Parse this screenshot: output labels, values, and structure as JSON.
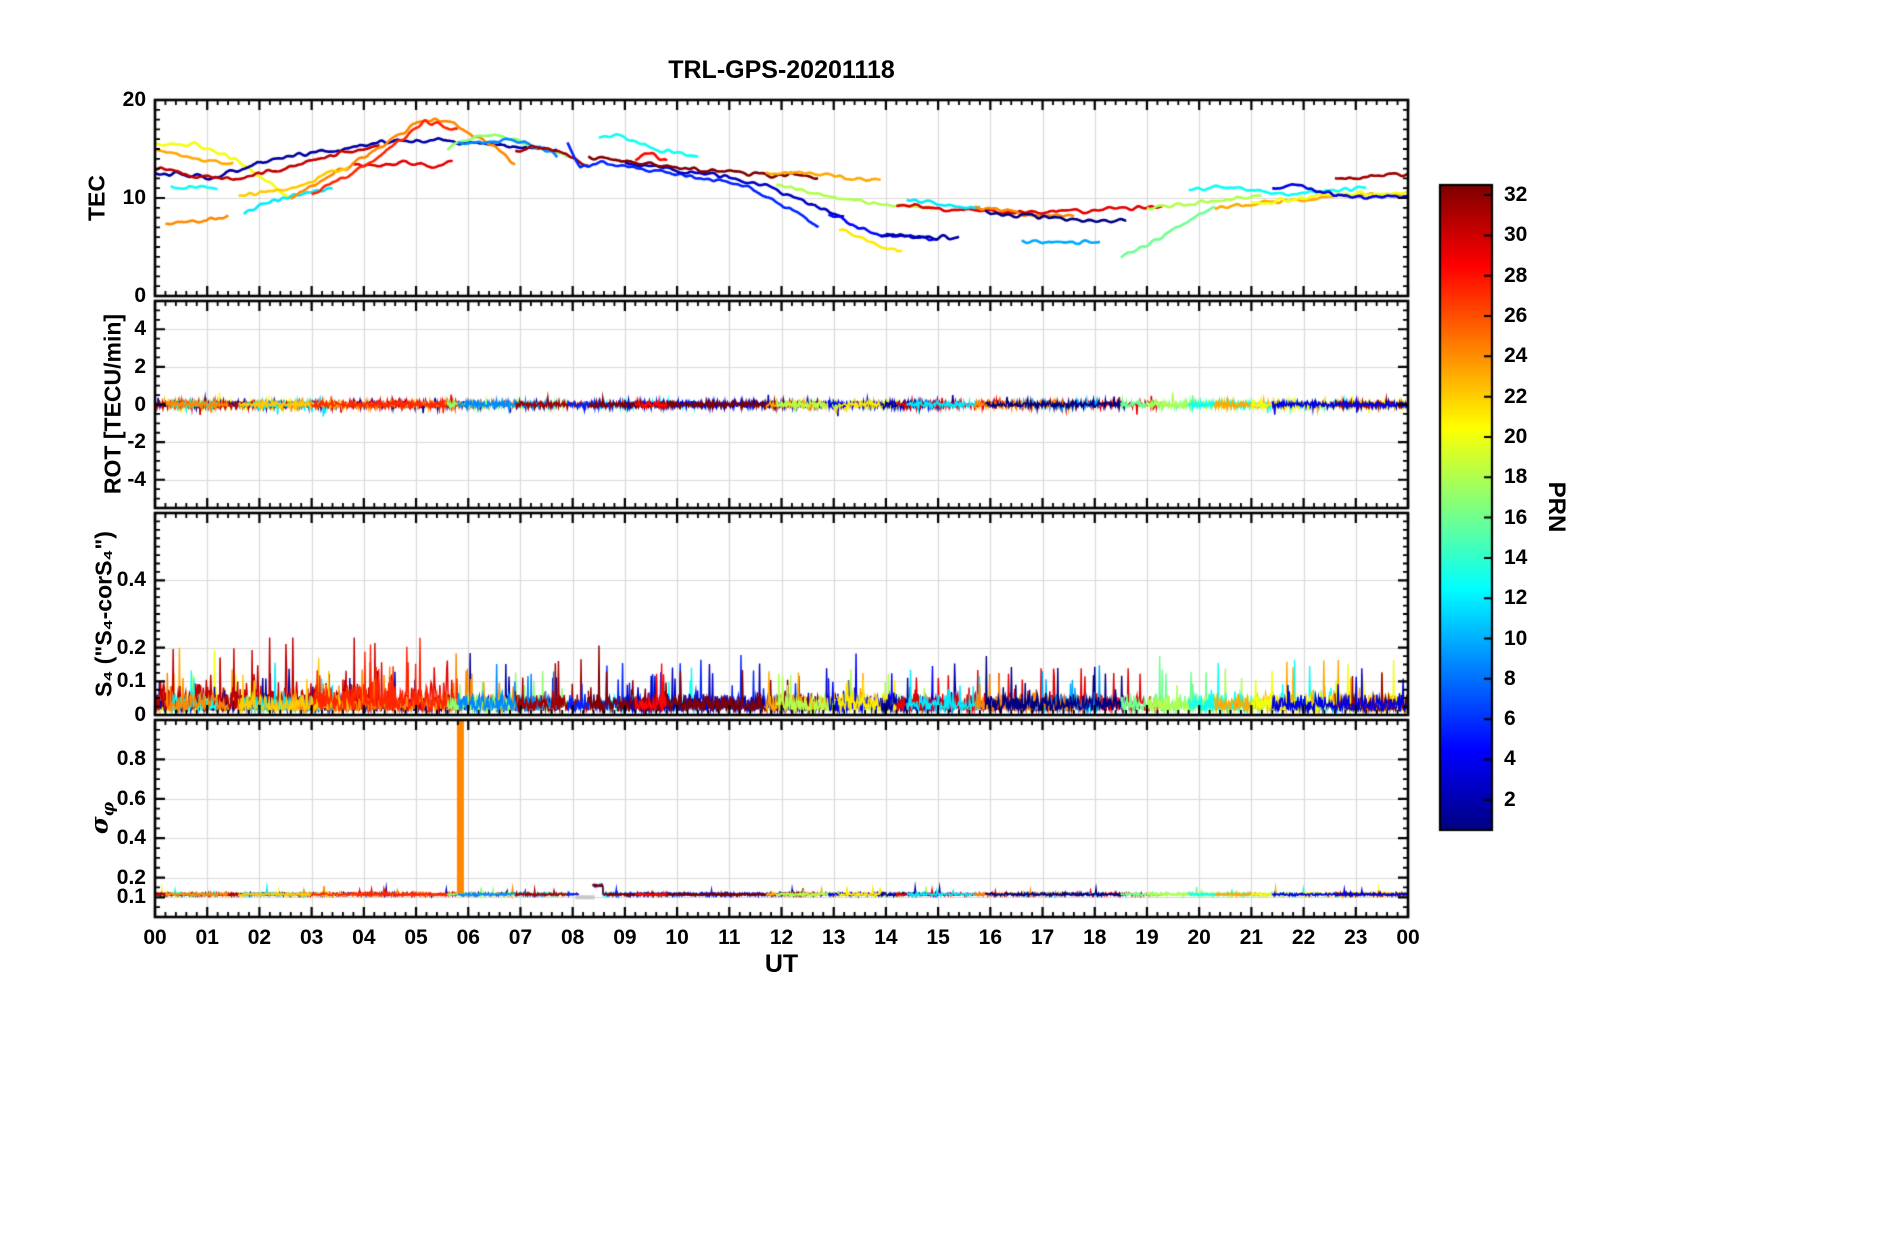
{
  "chart_data": {
    "type": "line",
    "title": "TRL-GPS-20201118",
    "xlabel": "UT",
    "x_range": [
      0,
      24
    ],
    "x_tick_labels": [
      "00",
      "01",
      "02",
      "03",
      "04",
      "05",
      "06",
      "07",
      "08",
      "09",
      "10",
      "11",
      "12",
      "13",
      "14",
      "15",
      "16",
      "17",
      "18",
      "19",
      "20",
      "21",
      "22",
      "23",
      "00"
    ],
    "x_minor": 0.2,
    "grid": true,
    "colorbar": {
      "label": "PRN",
      "range": [
        1,
        32
      ],
      "ticks": [
        2,
        4,
        6,
        8,
        10,
        12,
        14,
        16,
        18,
        20,
        22,
        24,
        26,
        28,
        30,
        32
      ],
      "colormap": "jet"
    },
    "panels": [
      {
        "name": "tec",
        "ylabel": "TEC",
        "ylim": [
          0,
          20
        ],
        "yticks": [
          0,
          10,
          20
        ],
        "yminor": 1
      },
      {
        "name": "rot",
        "ylabel": "ROT [TECU/min]",
        "ylim": [
          -5.5,
          5.5
        ],
        "yticks": [
          -4,
          -2,
          0,
          2,
          4
        ],
        "yminor": 0.5
      },
      {
        "name": "s4",
        "ylabel": "S₄ (\"S₄-corS₄\")",
        "ylim": [
          0,
          0.6
        ],
        "yticks": [
          0,
          0.1,
          0.2,
          0.4
        ],
        "yminor": 0.025
      },
      {
        "name": "sigma_phi",
        "ylabel_main": "σ",
        "ylabel_sub": "φ",
        "ylim": [
          0,
          1
        ],
        "yticks": [
          0.1,
          0.2,
          0.4,
          0.6,
          0.8
        ],
        "yminor": 0.05
      }
    ],
    "arcs": [
      {
        "prn": 23,
        "pts": [
          [
            0,
            14.9
          ],
          [
            0.7,
            14.1
          ],
          [
            1.3,
            13.6
          ],
          [
            1.5,
            13.5
          ]
        ]
      },
      {
        "prn": 20,
        "pts": [
          [
            0,
            15.4
          ],
          [
            0.8,
            15.5
          ],
          [
            1.5,
            14.0
          ],
          [
            2.1,
            11.9
          ],
          [
            2.6,
            9.8
          ]
        ]
      },
      {
        "prn": 2,
        "pts": [
          [
            0,
            12.6
          ],
          [
            0.6,
            12.3
          ],
          [
            1.1,
            12.1
          ],
          [
            1.6,
            12.9
          ],
          [
            2.2,
            13.8
          ],
          [
            2.8,
            14.4
          ],
          [
            3.3,
            14.7
          ],
          [
            3.8,
            15.2
          ],
          [
            4.3,
            15.7
          ],
          [
            4.9,
            15.9
          ],
          [
            5.5,
            15.9
          ],
          [
            6.1,
            15.6
          ],
          [
            6.7,
            15.4
          ],
          [
            7.3,
            15.1
          ],
          [
            7.7,
            15.0
          ]
        ]
      },
      {
        "prn": 30,
        "pts": [
          [
            0,
            13.1
          ],
          [
            0.8,
            12.2
          ],
          [
            1.6,
            11.9
          ],
          [
            2.4,
            12.9
          ],
          [
            3.2,
            14.2
          ],
          [
            3.8,
            14.9
          ],
          [
            4.3,
            15.2
          ]
        ]
      },
      {
        "prn": 29,
        "pts": [
          [
            3.8,
            13.6
          ],
          [
            4.3,
            13.2
          ],
          [
            4.8,
            13.8
          ],
          [
            5.3,
            13.1
          ],
          [
            5.7,
            13.6
          ]
        ]
      },
      {
        "prn": 12,
        "pts": [
          [
            1.7,
            8.4
          ],
          [
            2.3,
            9.8
          ],
          [
            2.9,
            10.5
          ],
          [
            3.4,
            10.9
          ]
        ]
      },
      {
        "prn": 13,
        "pts": [
          [
            0.3,
            11.2
          ],
          [
            0.8,
            11.0
          ],
          [
            1.2,
            10.9
          ]
        ]
      },
      {
        "prn": 24,
        "pts": [
          [
            2.6,
            10.1
          ],
          [
            3.2,
            11.7
          ],
          [
            3.9,
            13.9
          ],
          [
            4.5,
            15.7
          ],
          [
            5.0,
            17.6
          ],
          [
            5.2,
            18.1
          ],
          [
            5.6,
            17.8
          ],
          [
            6.0,
            16.7
          ],
          [
            6.5,
            15.3
          ],
          [
            6.9,
            13.3
          ]
        ]
      },
      {
        "prn": 22,
        "pts": [
          [
            1.6,
            10.3
          ],
          [
            2.2,
            10.6
          ],
          [
            2.8,
            11.4
          ],
          [
            3.3,
            12.4
          ],
          [
            3.7,
            13.0
          ]
        ]
      },
      {
        "prn": 27,
        "pts": [
          [
            3.0,
            10.5
          ],
          [
            3.6,
            12.0
          ],
          [
            4.2,
            13.9
          ],
          [
            4.7,
            15.9
          ],
          [
            5.0,
            17.2
          ],
          [
            5.15,
            17.9
          ],
          [
            5.4,
            17.6
          ],
          [
            5.8,
            16.9
          ]
        ]
      },
      {
        "prn": 17,
        "pts": [
          [
            5.6,
            15.1
          ],
          [
            6.1,
            16.2
          ],
          [
            6.5,
            16.5
          ],
          [
            7.0,
            15.7
          ],
          [
            7.5,
            14.8
          ],
          [
            7.9,
            14.3
          ]
        ]
      },
      {
        "prn": 9,
        "pts": [
          [
            5.8,
            15.4
          ],
          [
            6.3,
            15.8
          ],
          [
            6.9,
            15.9
          ],
          [
            7.4,
            15.1
          ],
          [
            7.7,
            14.4
          ]
        ]
      },
      {
        "prn": 31,
        "pts": [
          [
            6.9,
            14.8
          ],
          [
            7.2,
            15.3
          ],
          [
            7.6,
            14.7
          ],
          [
            8.0,
            14.2
          ],
          [
            8.3,
            13.5
          ]
        ]
      },
      {
        "prn": 13,
        "pts": [
          [
            8.5,
            16.3
          ],
          [
            8.8,
            16.4
          ],
          [
            9.2,
            15.7
          ],
          [
            9.6,
            15.0
          ],
          [
            10.0,
            14.6
          ],
          [
            10.4,
            14.2
          ]
        ]
      },
      {
        "prn": 6,
        "pts": [
          [
            7.9,
            15.9
          ],
          [
            8.05,
            14.0
          ],
          [
            8.15,
            13.1
          ],
          [
            8.6,
            13.5
          ],
          [
            9.2,
            13.0
          ],
          [
            9.9,
            12.4
          ],
          [
            10.6,
            12.0
          ],
          [
            11.1,
            11.5
          ],
          [
            11.6,
            10.5
          ],
          [
            12.1,
            9.1
          ],
          [
            12.5,
            7.8
          ],
          [
            12.7,
            7.2
          ]
        ]
      },
      {
        "prn": 3,
        "pts": [
          [
            9.0,
            13.5
          ],
          [
            9.6,
            13.1
          ],
          [
            10.2,
            12.7
          ],
          [
            10.8,
            12.3
          ],
          [
            11.3,
            11.8
          ],
          [
            11.7,
            11.2
          ],
          [
            12.1,
            10.4
          ],
          [
            12.5,
            9.5
          ],
          [
            12.9,
            8.6
          ],
          [
            13.2,
            8.0
          ]
        ]
      },
      {
        "prn": 32,
        "pts": [
          [
            8.3,
            14.3
          ],
          [
            8.8,
            13.9
          ],
          [
            9.4,
            13.5
          ],
          [
            10.0,
            13.2
          ],
          [
            10.6,
            12.8
          ],
          [
            11.2,
            12.5
          ],
          [
            11.8,
            12.2
          ],
          [
            12.3,
            12.4
          ],
          [
            12.7,
            12.0
          ]
        ]
      },
      {
        "prn": 28,
        "pts": [
          [
            9.2,
            14.0
          ],
          [
            9.5,
            14.5
          ],
          [
            9.8,
            13.9
          ]
        ]
      },
      {
        "prn": 23,
        "pts": [
          [
            11.7,
            12.5
          ],
          [
            12.3,
            12.6
          ],
          [
            12.9,
            12.3
          ],
          [
            13.4,
            12.0
          ],
          [
            13.9,
            11.8
          ]
        ]
      },
      {
        "prn": 18,
        "pts": [
          [
            11.9,
            11.3
          ],
          [
            12.5,
            10.7
          ],
          [
            13.1,
            10.0
          ],
          [
            13.7,
            9.5
          ],
          [
            14.3,
            9.1
          ],
          [
            14.9,
            8.9
          ]
        ]
      },
      {
        "prn": 5,
        "pts": [
          [
            12.9,
            8.4
          ],
          [
            13.3,
            7.4
          ],
          [
            13.7,
            6.6
          ],
          [
            14.1,
            6.1
          ],
          [
            14.6,
            5.9
          ],
          [
            15.0,
            5.8
          ]
        ]
      },
      {
        "prn": 21,
        "pts": [
          [
            13.1,
            6.9
          ],
          [
            13.5,
            5.9
          ],
          [
            13.9,
            5.1
          ],
          [
            14.3,
            4.6
          ]
        ]
      },
      {
        "prn": 2,
        "pts": [
          [
            13.9,
            6.4
          ],
          [
            14.4,
            6.1
          ],
          [
            14.9,
            6.0
          ],
          [
            15.4,
            5.9
          ]
        ]
      },
      {
        "prn": 29,
        "pts": [
          [
            14.2,
            9.3
          ],
          [
            14.9,
            9.0
          ],
          [
            15.6,
            8.7
          ],
          [
            16.3,
            8.5
          ],
          [
            17.0,
            8.6
          ],
          [
            17.7,
            8.6
          ],
          [
            18.3,
            8.8
          ],
          [
            18.9,
            9.1
          ],
          [
            19.3,
            9.3
          ]
        ]
      },
      {
        "prn": 12,
        "pts": [
          [
            14.4,
            9.7
          ],
          [
            14.9,
            9.4
          ],
          [
            15.4,
            9.1
          ],
          [
            15.8,
            9.0
          ]
        ]
      },
      {
        "prn": 10,
        "pts": [
          [
            16.6,
            5.6
          ],
          [
            17.1,
            5.4
          ],
          [
            17.7,
            5.5
          ],
          [
            18.1,
            5.6
          ]
        ]
      },
      {
        "prn": 24,
        "pts": [
          [
            15.7,
            9.0
          ],
          [
            16.2,
            8.7
          ],
          [
            16.8,
            8.2
          ],
          [
            17.3,
            8.0
          ],
          [
            17.6,
            8.2
          ]
        ]
      },
      {
        "prn": 1,
        "pts": [
          [
            15.9,
            8.6
          ],
          [
            16.5,
            8.2
          ],
          [
            17.1,
            7.9
          ],
          [
            17.7,
            7.7
          ],
          [
            18.2,
            7.6
          ],
          [
            18.6,
            7.8
          ]
        ]
      },
      {
        "prn": 16,
        "pts": [
          [
            18.5,
            4.1
          ],
          [
            19.0,
            5.2
          ],
          [
            19.5,
            6.8
          ],
          [
            20.0,
            8.3
          ],
          [
            20.3,
            9.0
          ]
        ]
      },
      {
        "prn": 18,
        "pts": [
          [
            19.0,
            9.0
          ],
          [
            19.6,
            9.3
          ],
          [
            20.2,
            9.7
          ],
          [
            20.8,
            10.0
          ],
          [
            21.2,
            10.1
          ]
        ]
      },
      {
        "prn": 13,
        "pts": [
          [
            19.8,
            10.9
          ],
          [
            20.3,
            11.1
          ],
          [
            20.8,
            10.9
          ],
          [
            21.3,
            10.6
          ],
          [
            21.8,
            10.4
          ],
          [
            22.3,
            10.6
          ],
          [
            22.8,
            10.9
          ],
          [
            23.2,
            11.0
          ]
        ]
      },
      {
        "prn": 23,
        "pts": [
          [
            20.3,
            9.0
          ],
          [
            20.9,
            9.3
          ],
          [
            21.5,
            9.6
          ],
          [
            22.1,
            9.9
          ],
          [
            22.7,
            10.2
          ],
          [
            23.3,
            10.4
          ],
          [
            23.8,
            10.3
          ],
          [
            24,
            10.3
          ]
        ]
      },
      {
        "prn": 20,
        "pts": [
          [
            21.0,
            9.4
          ],
          [
            21.6,
            9.8
          ],
          [
            22.2,
            10.1
          ],
          [
            22.8,
            10.4
          ],
          [
            23.4,
            10.5
          ],
          [
            24,
            10.4
          ]
        ]
      },
      {
        "prn": 31,
        "pts": [
          [
            22.6,
            11.9
          ],
          [
            23.1,
            12.1
          ],
          [
            23.5,
            12.4
          ],
          [
            23.9,
            12.3
          ],
          [
            24,
            12.5
          ]
        ]
      },
      {
        "prn": 4,
        "pts": [
          [
            21.4,
            10.9
          ],
          [
            21.8,
            11.3
          ],
          [
            22.2,
            10.8
          ],
          [
            22.6,
            10.4
          ],
          [
            23.0,
            10.1
          ],
          [
            23.4,
            10.0
          ],
          [
            23.8,
            10.1
          ],
          [
            24,
            10.2
          ]
        ]
      },
      {
        "prn": 24,
        "pts": [
          [
            0.2,
            7.3
          ],
          [
            0.6,
            7.5
          ],
          [
            1.0,
            7.8
          ],
          [
            1.4,
            8.1
          ]
        ]
      }
    ],
    "noise": {
      "tec_wiggle": 0.25,
      "rot": {
        "amplitude": 0.09,
        "spike_prob": 0.012,
        "spike_amplitude": 0.55
      },
      "s4": {
        "base": 0.012,
        "amplitude": 0.028,
        "spike_prob": 0.05,
        "spike_max": 0.2,
        "early_red_boost": 1.7
      },
      "sigma": {
        "base": 0.115,
        "amplitude": 0.009
      }
    },
    "sigma_features": {
      "spike": {
        "t": 5.85,
        "prn": 24,
        "from": 0.12,
        "to": 0.995
      },
      "gap": {
        "t": [
          8.12,
          8.38
        ]
      },
      "raised": {
        "t": [
          8.38,
          8.58
        ],
        "value": 0.16
      },
      "gray_band": {
        "t": [
          8.05,
          8.42
        ],
        "value": 0.1,
        "color": "#c8c8c8"
      }
    }
  }
}
